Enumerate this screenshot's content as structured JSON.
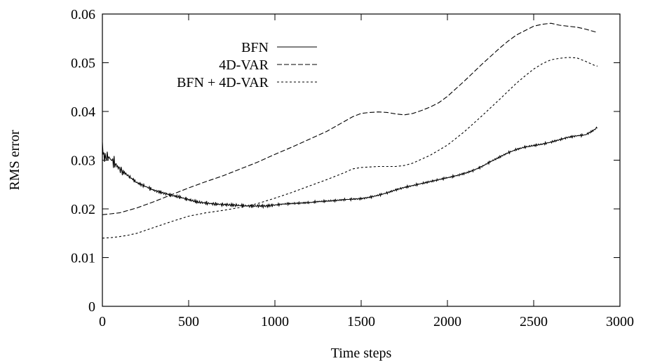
{
  "chart_data": {
    "type": "line",
    "xlabel": "Time steps",
    "ylabel": "RMS error",
    "xlim": [
      0,
      3000
    ],
    "ylim": [
      0,
      0.06
    ],
    "xticks": [
      0,
      500,
      1000,
      1500,
      2000,
      2500,
      3000
    ],
    "xtick_labels": [
      "0",
      "500",
      "1000",
      "1500",
      "2000",
      "2500",
      "3000"
    ],
    "yticks": [
      0,
      0.01,
      0.02,
      0.03,
      0.04,
      0.05,
      0.06
    ],
    "ytick_labels": [
      "0",
      "0.01",
      "0.02",
      "0.03",
      "0.04",
      "0.05",
      "0.06"
    ],
    "grid": false,
    "legend_position": "top-center",
    "series": [
      {
        "name": "BFN",
        "style": "solid",
        "noisy": true,
        "x": [
          0,
          5,
          10,
          30,
          60,
          100,
          150,
          200,
          250,
          300,
          350,
          400,
          450,
          500,
          550,
          600,
          650,
          700,
          750,
          800,
          850,
          900,
          950,
          1000,
          1050,
          1100,
          1150,
          1200,
          1250,
          1300,
          1350,
          1400,
          1450,
          1500,
          1550,
          1600,
          1650,
          1700,
          1750,
          1800,
          1850,
          1900,
          1950,
          2000,
          2050,
          2100,
          2150,
          2200,
          2250,
          2300,
          2350,
          2400,
          2450,
          2500,
          2550,
          2600,
          2650,
          2700,
          2750,
          2800,
          2850,
          2870
        ],
        "y": [
          0.033,
          0.0315,
          0.0305,
          0.0308,
          0.0298,
          0.0282,
          0.0268,
          0.0254,
          0.0246,
          0.0238,
          0.0233,
          0.0228,
          0.0224,
          0.0219,
          0.0214,
          0.0212,
          0.021,
          0.0209,
          0.0208,
          0.0207,
          0.0206,
          0.0206,
          0.0206,
          0.0208,
          0.021,
          0.0211,
          0.0212,
          0.0213,
          0.0215,
          0.0216,
          0.0217,
          0.0219,
          0.022,
          0.0221,
          0.0224,
          0.0228,
          0.0233,
          0.0239,
          0.0244,
          0.0248,
          0.0252,
          0.0256,
          0.026,
          0.0264,
          0.0268,
          0.0273,
          0.0279,
          0.0287,
          0.0297,
          0.0306,
          0.0315,
          0.0322,
          0.0327,
          0.033,
          0.0333,
          0.0337,
          0.0342,
          0.0347,
          0.035,
          0.0352,
          0.0362,
          0.0368
        ]
      },
      {
        "name": "4D-VAR",
        "style": "dashed",
        "noisy": false,
        "x": [
          0,
          50,
          100,
          150,
          200,
          300,
          400,
          500,
          600,
          700,
          800,
          900,
          1000,
          1100,
          1200,
          1300,
          1400,
          1450,
          1500,
          1550,
          1600,
          1650,
          1700,
          1750,
          1800,
          1850,
          1900,
          1950,
          2000,
          2100,
          2200,
          2300,
          2350,
          2400,
          2450,
          2500,
          2550,
          2600,
          2650,
          2700,
          2750,
          2800,
          2850,
          2870
        ],
        "y": [
          0.0188,
          0.019,
          0.0192,
          0.0197,
          0.0202,
          0.0215,
          0.0229,
          0.0243,
          0.0256,
          0.0268,
          0.0282,
          0.0296,
          0.0312,
          0.0327,
          0.0343,
          0.0359,
          0.0379,
          0.0389,
          0.0396,
          0.0398,
          0.0399,
          0.0398,
          0.0395,
          0.0393,
          0.0396,
          0.0402,
          0.0409,
          0.0418,
          0.0431,
          0.0463,
          0.0497,
          0.0529,
          0.0544,
          0.0557,
          0.0566,
          0.0575,
          0.0579,
          0.0581,
          0.0577,
          0.0575,
          0.0573,
          0.0569,
          0.0564,
          0.0562
        ]
      },
      {
        "name": "BFN + 4D-VAR",
        "style": "dotted",
        "noisy": false,
        "x": [
          0,
          50,
          100,
          150,
          200,
          300,
          400,
          500,
          600,
          700,
          800,
          900,
          1000,
          1100,
          1200,
          1300,
          1400,
          1450,
          1500,
          1550,
          1600,
          1650,
          1700,
          1750,
          1800,
          1900,
          2000,
          2100,
          2200,
          2300,
          2400,
          2450,
          2500,
          2550,
          2600,
          2650,
          2700,
          2750,
          2800,
          2850,
          2870
        ],
        "y": [
          0.014,
          0.0141,
          0.0143,
          0.0146,
          0.015,
          0.0162,
          0.0174,
          0.0185,
          0.0192,
          0.0197,
          0.0203,
          0.0211,
          0.0222,
          0.0234,
          0.0247,
          0.026,
          0.0274,
          0.0282,
          0.0285,
          0.0286,
          0.0287,
          0.0287,
          0.0287,
          0.0289,
          0.0294,
          0.031,
          0.0331,
          0.0359,
          0.0391,
          0.0424,
          0.0458,
          0.0473,
          0.0487,
          0.0498,
          0.0506,
          0.0509,
          0.0511,
          0.051,
          0.0503,
          0.0495,
          0.0493
        ]
      }
    ]
  }
}
